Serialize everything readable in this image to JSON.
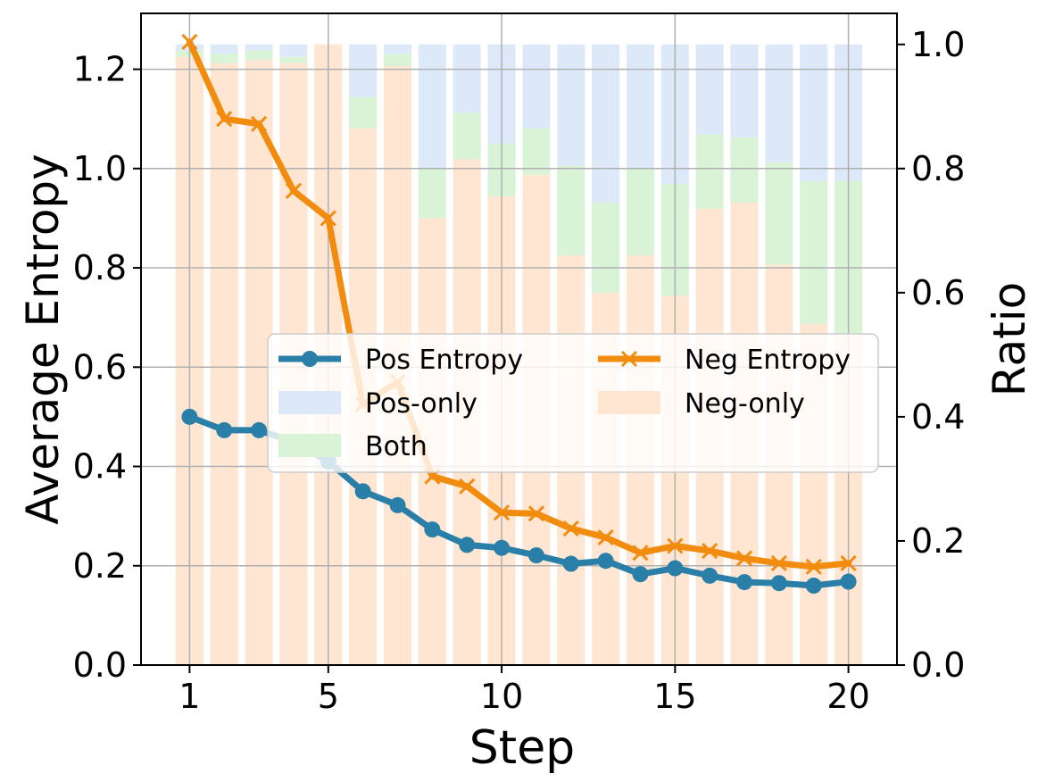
{
  "chart_data": {
    "type": "bar+line",
    "xlabel": "Step",
    "ylabel_left": "Average Entropy",
    "ylabel_right": "Ratio",
    "x": [
      1,
      2,
      3,
      4,
      5,
      6,
      7,
      8,
      9,
      10,
      11,
      12,
      13,
      14,
      15,
      16,
      17,
      18,
      19,
      20
    ],
    "xticks": [
      1,
      5,
      10,
      15,
      20
    ],
    "xlim": [
      -0.4,
      21.4
    ],
    "ylim_left": [
      0,
      1.3125
    ],
    "ylim_right": [
      0,
      1.05
    ],
    "yticks_left": [
      "0.0",
      "0.2",
      "0.4",
      "0.6",
      "0.8",
      "1.0",
      "1.2"
    ],
    "yticks_right": [
      "0.0",
      "0.2",
      "0.4",
      "0.6",
      "0.8",
      "1.0"
    ],
    "grid": true,
    "legend_position": "center-right",
    "lines": [
      {
        "name": "Pos Entropy",
        "axis": "left",
        "color": "#2a7fa8",
        "marker": "circle",
        "values": [
          0.5,
          0.473,
          0.473,
          0.45,
          0.41,
          0.35,
          0.322,
          0.273,
          0.242,
          0.236,
          0.221,
          0.204,
          0.21,
          0.183,
          0.195,
          0.18,
          0.167,
          0.165,
          0.16,
          0.168
        ]
      },
      {
        "name": "Neg Entropy",
        "axis": "left",
        "color": "#f28c0f",
        "marker": "x",
        "values": [
          1.255,
          1.1,
          1.09,
          0.955,
          0.9,
          0.525,
          0.57,
          0.38,
          0.36,
          0.307,
          0.305,
          0.275,
          0.257,
          0.226,
          0.24,
          0.23,
          0.215,
          0.205,
          0.198,
          0.205
        ]
      }
    ],
    "bars": {
      "axis": "right",
      "stacked_order": [
        "Neg-only",
        "Both",
        "Pos-only"
      ],
      "series": [
        {
          "name": "Neg-only",
          "color": "#fee6d2",
          "values": [
            0.98,
            0.97,
            0.975,
            0.97,
            1.0,
            0.865,
            0.965,
            0.72,
            0.815,
            0.755,
            0.79,
            0.66,
            0.6,
            0.66,
            0.595,
            0.735,
            0.745,
            0.645,
            0.55,
            0.535
          ]
        },
        {
          "name": "Both",
          "color": "#d8f3d6",
          "values": [
            0.01,
            0.015,
            0.015,
            0.01,
            0.0,
            0.05,
            0.02,
            0.08,
            0.075,
            0.085,
            0.075,
            0.145,
            0.145,
            0.14,
            0.18,
            0.12,
            0.105,
            0.165,
            0.23,
            0.245
          ]
        },
        {
          "name": "Pos-only",
          "color": "#dde9f8",
          "values": [
            0.01,
            0.015,
            0.01,
            0.02,
            0.0,
            0.085,
            0.015,
            0.2,
            0.11,
            0.16,
            0.135,
            0.195,
            0.255,
            0.2,
            0.225,
            0.145,
            0.15,
            0.19,
            0.22,
            0.22
          ]
        }
      ]
    },
    "legend": {
      "items": [
        {
          "label": "Pos Entropy",
          "kind": "line",
          "series": "Pos Entropy"
        },
        {
          "label": "Neg Entropy",
          "kind": "line",
          "series": "Neg Entropy"
        },
        {
          "label": "Pos-only",
          "kind": "patch",
          "series": "Pos-only"
        },
        {
          "label": "Neg-only",
          "kind": "patch",
          "series": "Neg-only"
        },
        {
          "label": "Both",
          "kind": "patch",
          "series": "Both"
        }
      ]
    }
  }
}
